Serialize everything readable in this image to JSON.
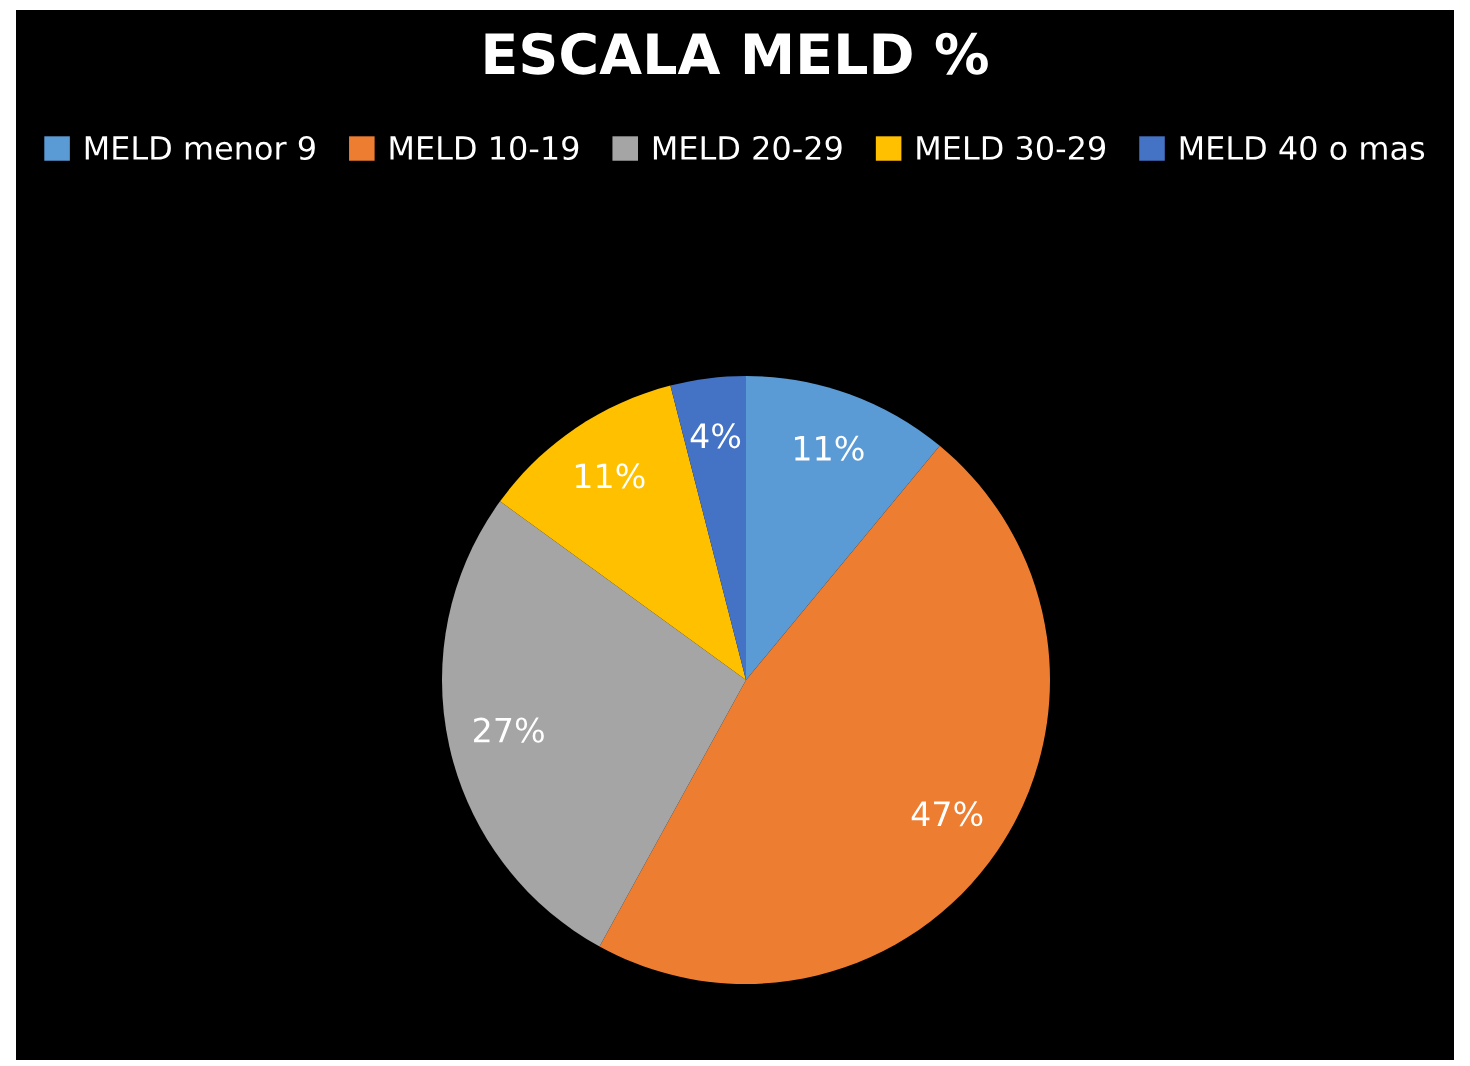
{
  "chart_data": {
    "type": "pie",
    "title": "ESCALA MELD %",
    "categories": [
      "MELD menor 9",
      "MELD 10-19",
      "MELD 20-29",
      "MELD 30-29",
      "MELD 40 o mas"
    ],
    "values": [
      11,
      47,
      27,
      11,
      4
    ],
    "colors": [
      "#5b9bd5",
      "#ed7d31",
      "#a5a5a5",
      "#ffc000",
      "#4472c4"
    ],
    "value_labels": [
      "11%",
      "47%",
      "27%",
      "11%",
      "4%"
    ],
    "legend": "top"
  }
}
